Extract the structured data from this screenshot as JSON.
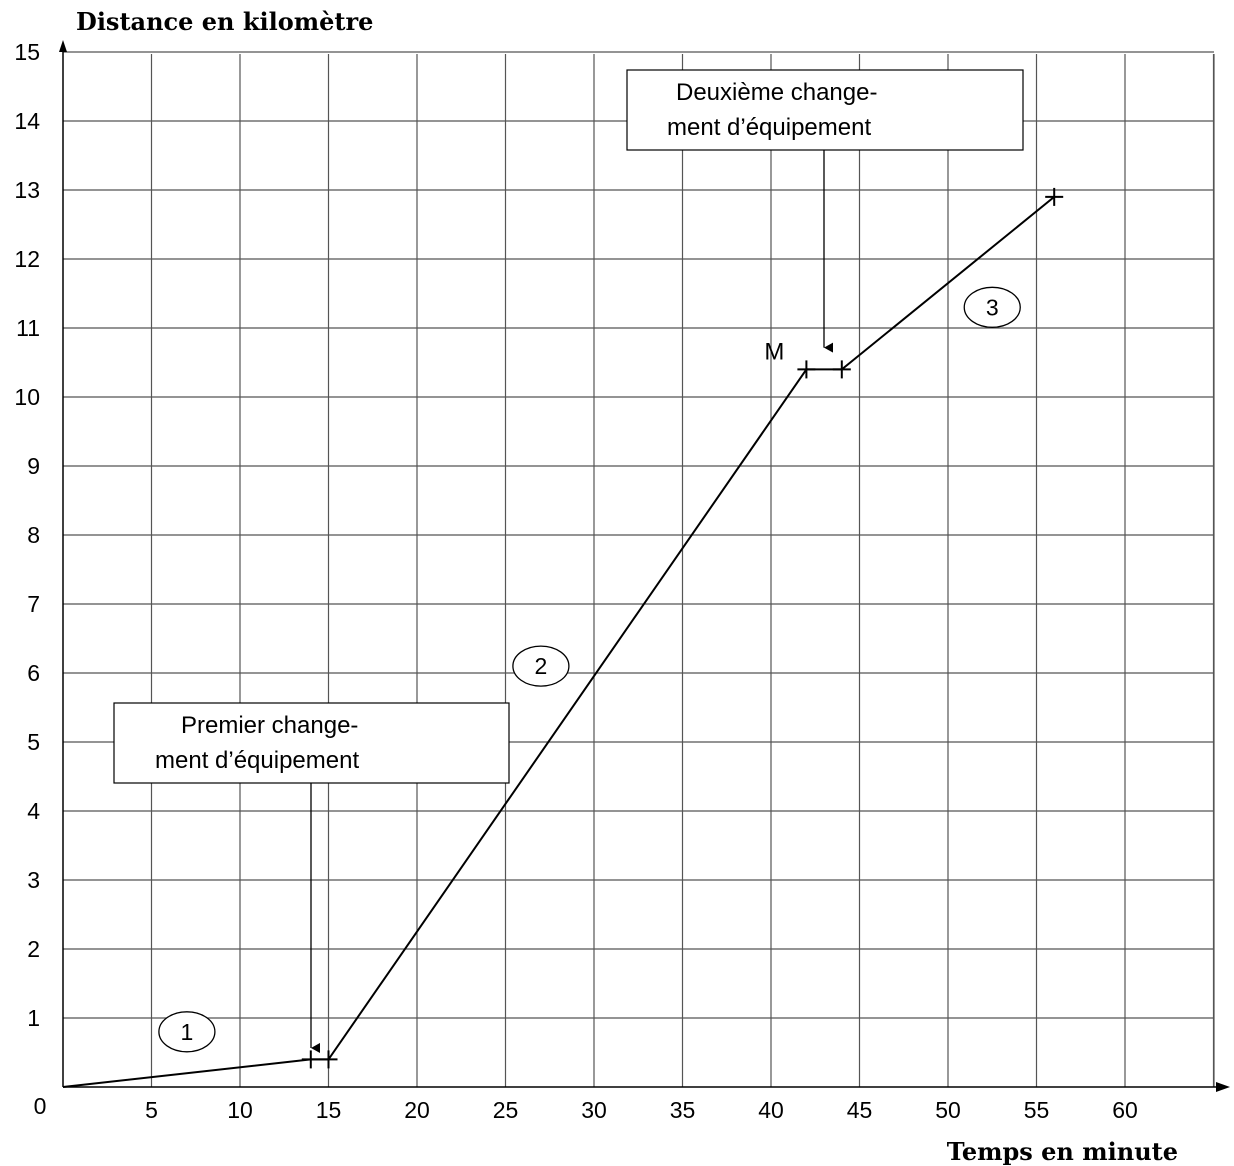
{
  "chart_data": {
    "type": "line",
    "ylabel": "Distance en kilomètre",
    "xlabel": "Temps en minute",
    "origin_label": "0",
    "x_ticks": [
      5,
      10,
      15,
      20,
      25,
      30,
      35,
      40,
      45,
      50,
      55,
      60
    ],
    "y_ticks": [
      1,
      2,
      3,
      4,
      5,
      6,
      7,
      8,
      9,
      10,
      11,
      12,
      13,
      14,
      15
    ],
    "xlim": [
      0,
      65
    ],
    "ylim": [
      0,
      15
    ],
    "grid": true,
    "series": [
      {
        "x": [
          0,
          14,
          15,
          42,
          44,
          56
        ],
        "y": [
          0,
          0.4,
          0.4,
          10.4,
          10.4,
          12.9
        ]
      }
    ],
    "markers": [
      {
        "x": 14,
        "y": 0.4
      },
      {
        "x": 15,
        "y": 0.4
      },
      {
        "x": 42,
        "y": 10.4
      },
      {
        "x": 44,
        "y": 10.4
      },
      {
        "x": 56,
        "y": 12.9
      }
    ],
    "point_label": {
      "text": "M",
      "x": 42,
      "y": 10.4
    },
    "segment_labels": [
      {
        "text": "1",
        "x": 7,
        "y": 0.8
      },
      {
        "text": "2",
        "x": 27,
        "y": 6.1
      },
      {
        "text": "3",
        "x": 52.5,
        "y": 11.3
      }
    ],
    "annotations": [
      {
        "lines": [
          "Premier change-",
          "ment d’équipement"
        ],
        "target_x": 14,
        "target_y": 0.45
      },
      {
        "lines": [
          "Deuxième change-",
          "ment d’équipement"
        ],
        "target_x": 43,
        "target_y": 10.6
      }
    ]
  }
}
